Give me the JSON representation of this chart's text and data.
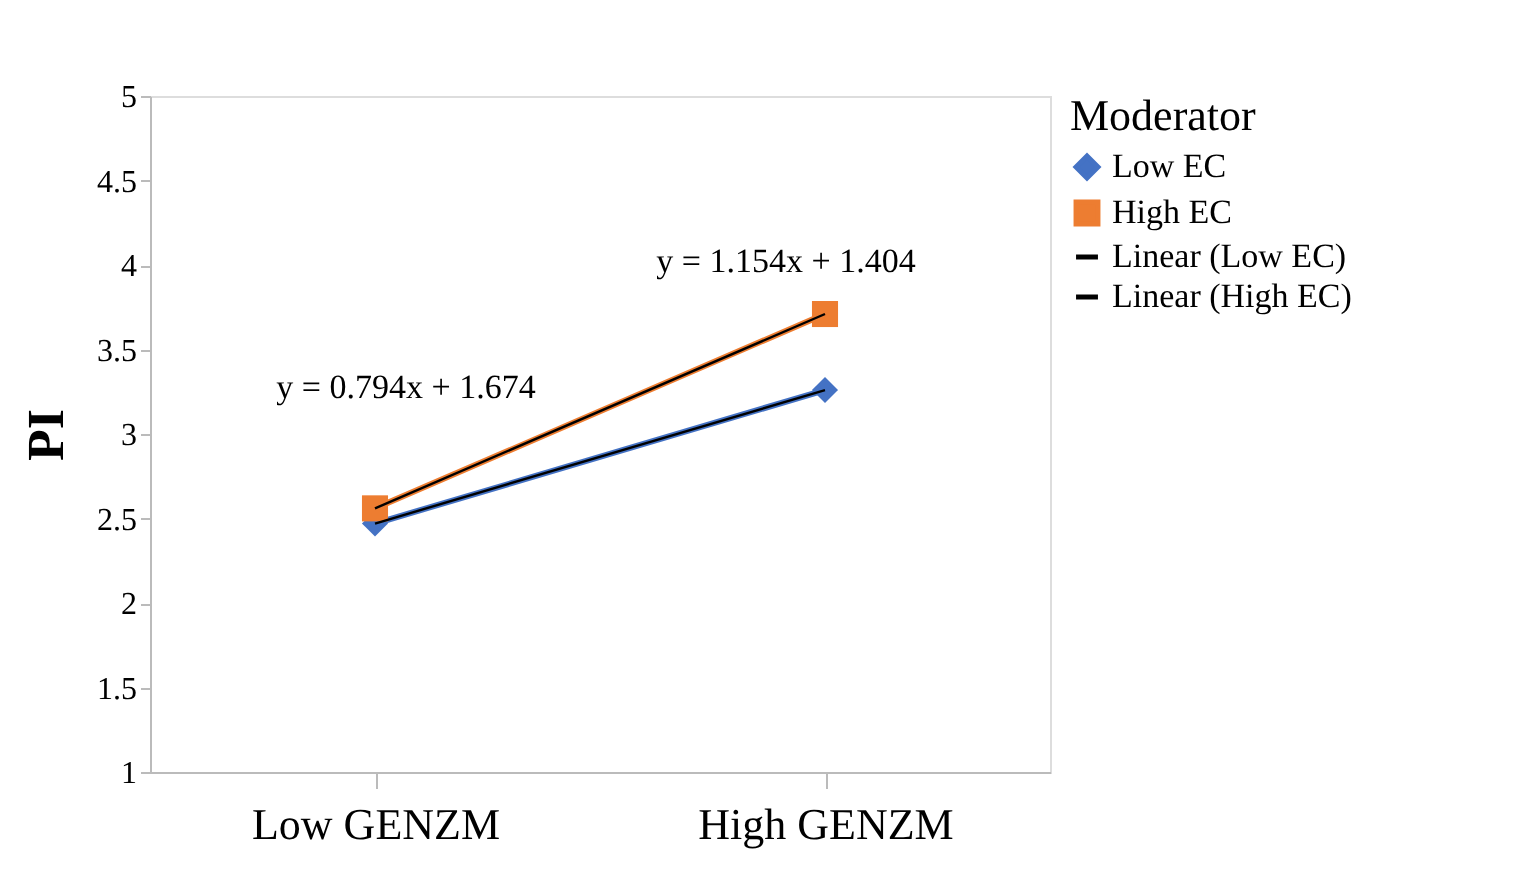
{
  "chart_data": {
    "type": "line",
    "categories": [
      "Low GENZM",
      "High GENZM"
    ],
    "ylabel": "PI",
    "legend_title": "Moderator",
    "legend": "right",
    "grid": false,
    "ylim": [
      1,
      5
    ],
    "yticks": [
      1,
      1.5,
      2,
      2.5,
      3,
      3.5,
      4,
      4.5,
      5
    ],
    "series": [
      {
        "name": "Low EC",
        "color": "#4472c4",
        "values": [
          2.47,
          3.26
        ],
        "marker": "diamond"
      },
      {
        "name": "High EC",
        "color": "#ed7d31",
        "values": [
          2.56,
          3.71
        ],
        "marker": "square"
      },
      {
        "name": "Linear (Low EC)",
        "color": "#000000",
        "values": [
          2.47,
          3.26
        ]
      },
      {
        "name": "Linear (High EC)",
        "color": "#000000",
        "values": [
          2.56,
          3.71
        ]
      }
    ],
    "annotations": [
      "y = 0.794x + 1.674",
      "y = 1.154x + 1.404"
    ]
  }
}
